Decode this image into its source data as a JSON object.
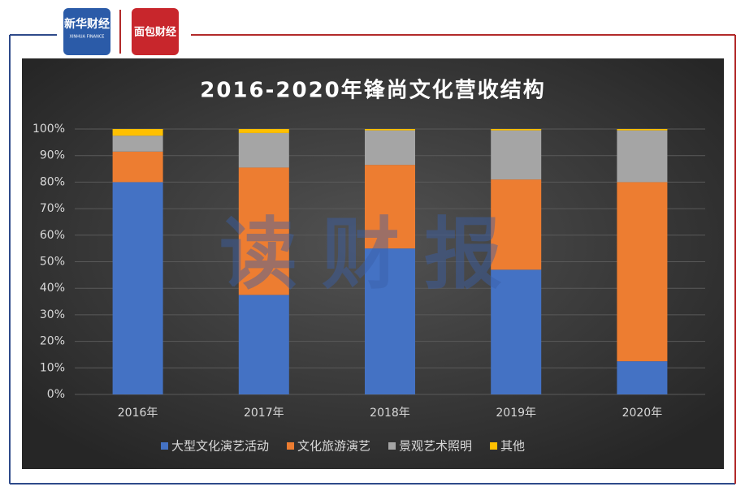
{
  "header": {
    "logo_left": "新华财经",
    "logo_left_sub": "XINHUA FINANCE",
    "logo_right": "面包财经"
  },
  "watermark": "读财报",
  "chart_data": {
    "type": "stacked_bar",
    "title": "2016-2020年锋尚文化营收结构",
    "categories": [
      "2016年",
      "2017年",
      "2018年",
      "2019年",
      "2020年"
    ],
    "series": [
      {
        "name": "大型文化演艺活动",
        "color": "#4472c4",
        "values": [
          80,
          37.5,
          55,
          47,
          12.5
        ]
      },
      {
        "name": "文化旅游演艺",
        "color": "#ed7d31",
        "values": [
          11.5,
          48,
          31.5,
          34,
          67.5
        ]
      },
      {
        "name": "景观艺术照明",
        "color": "#a5a5a5",
        "values": [
          6,
          13,
          13,
          18.5,
          19.5
        ]
      },
      {
        "name": "其他",
        "color": "#ffc000",
        "values": [
          2.5,
          1.5,
          0.5,
          0.5,
          0.5
        ]
      }
    ],
    "ylim": [
      0,
      100
    ],
    "yticks": [
      {
        "value": 0,
        "label": "0%"
      },
      {
        "value": 10,
        "label": "10%"
      },
      {
        "value": 20,
        "label": "20%"
      },
      {
        "value": 30,
        "label": "30%"
      },
      {
        "value": 40,
        "label": "40%"
      },
      {
        "value": 50,
        "label": "50%"
      },
      {
        "value": 60,
        "label": "60%"
      },
      {
        "value": 70,
        "label": "70%"
      },
      {
        "value": 80,
        "label": "80%"
      },
      {
        "value": 90,
        "label": "90%"
      },
      {
        "value": 100,
        "label": "100%"
      }
    ],
    "grid": true
  }
}
